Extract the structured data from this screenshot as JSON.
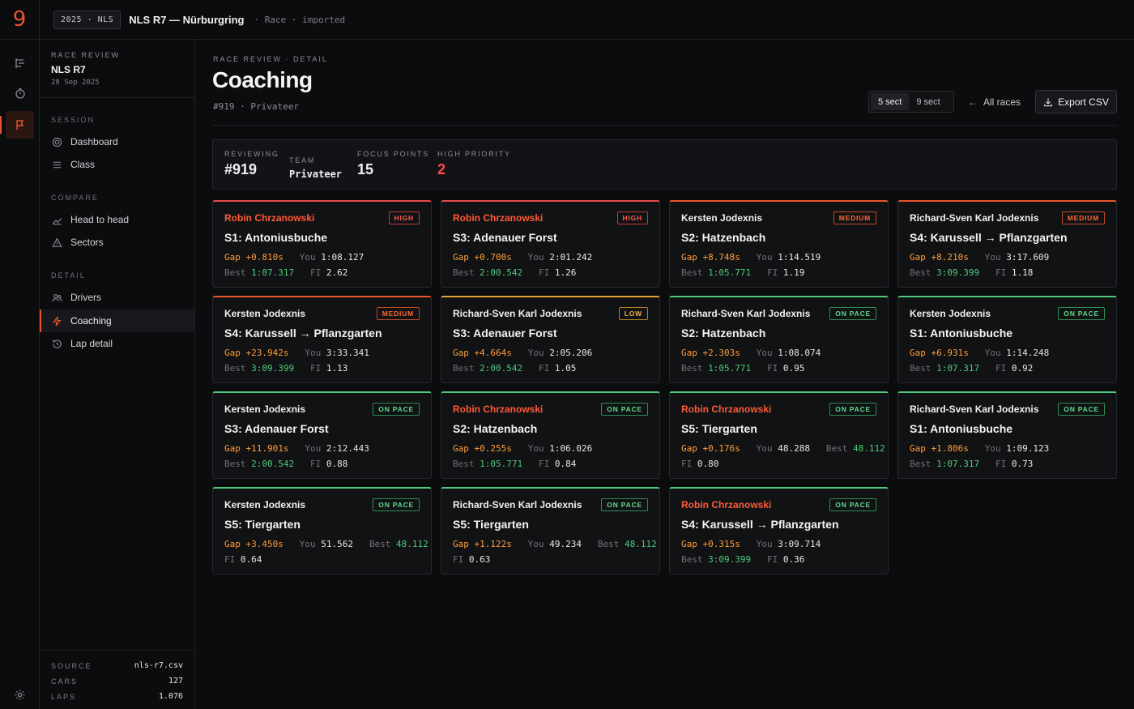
{
  "topbar": {
    "logo": "9",
    "chip": "2025 · NLS",
    "title": "NLS R7 — Nürburgring",
    "meta": "· Race · imported"
  },
  "sidebar": {
    "eyebrow": "RACE REVIEW",
    "title": "NLS R7",
    "date": "28 Sep 2025",
    "sections": {
      "session": "SESSION",
      "compare": "COMPARE",
      "detail": "DETAIL"
    },
    "items": {
      "dashboard": "Dashboard",
      "class": "Class",
      "h2h": "Head to head",
      "sectors": "Sectors",
      "drivers": "Drivers",
      "coaching": "Coaching",
      "lapdetail": "Lap detail"
    },
    "footer": {
      "source_k": "SOURCE",
      "source_v": "nls-r7.csv",
      "cars_k": "CARS",
      "cars_v": "127",
      "laps_k": "LAPS",
      "laps_v": "1.076"
    }
  },
  "main": {
    "eyebrow": "RACE REVIEW · DETAIL",
    "title": "Coaching",
    "subtitle": "#919 · Privateer",
    "seg": {
      "a": "5 sect",
      "b": "9 sect"
    },
    "all_races": "All races",
    "export": "Export CSV",
    "stats": {
      "reviewing_l": "REVIEWING",
      "reviewing_v": "#919",
      "team_l": "TEAM",
      "team_v": "Privateer",
      "focus_l": "FOCUS POINTS",
      "focus_v": "15",
      "prio_l": "HIGH PRIORITY",
      "prio_v": "2"
    }
  },
  "labels": {
    "gap": "Gap",
    "you": "You",
    "best": "Best",
    "fi": "FI"
  },
  "cards": [
    {
      "driver": "Robin Chrzanowski",
      "badge": "HIGH",
      "sector": "S1: Antoniusbuche",
      "gap": "+0.810s",
      "you": "1:08.127",
      "best": "1:07.317",
      "fi": "2.62"
    },
    {
      "driver": "Robin Chrzanowski",
      "badge": "HIGH",
      "sector": "S3: Adenauer Forst",
      "gap": "+0.700s",
      "you": "2:01.242",
      "best": "2:00.542",
      "fi": "1.26"
    },
    {
      "driver": "Kersten Jodexnis",
      "badge": "MEDIUM",
      "sector": "S2: Hatzenbach",
      "gap": "+8.748s",
      "you": "1:14.519",
      "best": "1:05.771",
      "fi": "1.19"
    },
    {
      "driver": "Richard-Sven Karl Jodexnis",
      "badge": "MEDIUM",
      "sector": "S4: Karussell → Pflanzgarten",
      "gap": "+8.210s",
      "you": "3:17.609",
      "best": "3:09.399",
      "fi": "1.18"
    },
    {
      "driver": "Kersten Jodexnis",
      "badge": "MEDIUM",
      "sector": "S4: Karussell → Pflanzgarten",
      "gap": "+23.942s",
      "you": "3:33.341",
      "best": "3:09.399",
      "fi": "1.13"
    },
    {
      "driver": "Richard-Sven Karl Jodexnis",
      "badge": "LOW",
      "sector": "S3: Adenauer Forst",
      "gap": "+4.664s",
      "you": "2:05.206",
      "best": "2:00.542",
      "fi": "1.05"
    },
    {
      "driver": "Richard-Sven Karl Jodexnis",
      "badge": "ON PACE",
      "sector": "S2: Hatzenbach",
      "gap": "+2.303s",
      "you": "1:08.074",
      "best": "1:05.771",
      "fi": "0.95"
    },
    {
      "driver": "Kersten Jodexnis",
      "badge": "ON PACE",
      "sector": "S1: Antoniusbuche",
      "gap": "+6.931s",
      "you": "1:14.248",
      "best": "1:07.317",
      "fi": "0.92"
    },
    {
      "driver": "Kersten Jodexnis",
      "badge": "ON PACE",
      "sector": "S3: Adenauer Forst",
      "gap": "+11.901s",
      "you": "2:12.443",
      "best": "2:00.542",
      "fi": "0.88"
    },
    {
      "driver": "Robin Chrzanowski",
      "badge": "ON PACE",
      "sector": "S2: Hatzenbach",
      "gap": "+0.255s",
      "you": "1:06.026",
      "best": "1:05.771",
      "fi": "0.84"
    },
    {
      "driver": "Robin Chrzanowski",
      "badge": "ON PACE",
      "sector": "S5: Tiergarten",
      "gap": "+0.176s",
      "you": "48.288",
      "best": "48.112",
      "fi": "0.80"
    },
    {
      "driver": "Richard-Sven Karl Jodexnis",
      "badge": "ON PACE",
      "sector": "S1: Antoniusbuche",
      "gap": "+1.806s",
      "you": "1:09.123",
      "best": "1:07.317",
      "fi": "0.73"
    },
    {
      "driver": "Kersten Jodexnis",
      "badge": "ON PACE",
      "sector": "S5: Tiergarten",
      "gap": "+3.450s",
      "you": "51.562",
      "best": "48.112",
      "fi": "0.64"
    },
    {
      "driver": "Richard-Sven Karl Jodexnis",
      "badge": "ON PACE",
      "sector": "S5: Tiergarten",
      "gap": "+1.122s",
      "you": "49.234",
      "best": "48.112",
      "fi": "0.63"
    },
    {
      "driver": "Robin Chrzanowski",
      "badge": "ON PACE",
      "sector": "S4: Karussell → Pflanzgarten",
      "gap": "+0.315s",
      "you": "3:09.714",
      "best": "3:09.399",
      "fi": "0.36"
    }
  ]
}
